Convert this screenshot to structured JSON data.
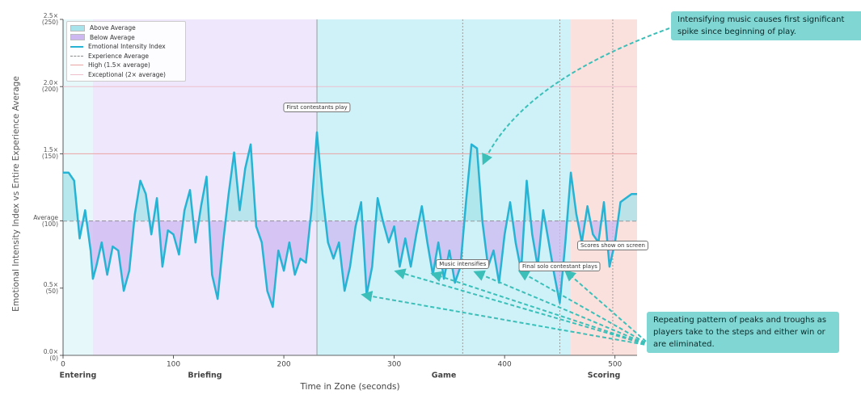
{
  "chart_data": {
    "type": "line",
    "x_label": "Time in Zone (seconds)",
    "y_label": "Emotional Intensity Index vs Entire Experience Average",
    "xlim": [
      0,
      520
    ],
    "xticks": [
      0,
      100,
      200,
      300,
      400,
      500
    ],
    "ylim": [
      0,
      2.5
    ],
    "yticks": [
      {
        "value": 0,
        "label": "0.0×\n(0)"
      },
      {
        "value": 0.5,
        "label": "0.5×\n(50)"
      },
      {
        "value": 1,
        "label": "Average\n(100)"
      },
      {
        "value": 1.5,
        "label": "1.5×\n(150)"
      },
      {
        "value": 2,
        "label": "2.0×\n(200)"
      },
      {
        "value": 2.5,
        "label": "2.5×\n(250)"
      }
    ],
    "legend": "upper left",
    "areas": [
      {
        "name": "Above Average",
        "color": "#a6e3ea"
      },
      {
        "name": "Below Average",
        "color": "#cdb8f2"
      }
    ],
    "x": [
      0,
      5,
      10,
      15,
      20,
      25,
      27,
      30,
      35,
      40,
      45,
      50,
      55,
      60,
      65,
      70,
      75,
      80,
      85,
      90,
      95,
      100,
      105,
      110,
      115,
      120,
      125,
      130,
      135,
      140,
      145,
      150,
      155,
      160,
      165,
      170,
      175,
      180,
      185,
      190,
      195,
      200,
      205,
      210,
      215,
      220,
      225,
      230,
      235,
      240,
      245,
      250,
      255,
      260,
      265,
      270,
      275,
      280,
      285,
      290,
      295,
      300,
      305,
      310,
      315,
      320,
      325,
      330,
      335,
      340,
      345,
      350,
      355,
      360,
      365,
      370,
      375,
      380,
      385,
      390,
      395,
      400,
      405,
      410,
      415,
      420,
      425,
      430,
      435,
      440,
      445,
      450,
      455,
      460,
      465,
      470,
      475,
      480,
      485,
      490,
      495,
      500,
      505,
      510,
      515,
      520
    ],
    "series": [
      {
        "name": "Emotional Intensity Index",
        "color": "#27b3d4",
        "values": [
          1.36,
          1.36,
          1.3,
          0.87,
          1.08,
          0.78,
          0.57,
          0.66,
          0.84,
          0.6,
          0.81,
          0.78,
          0.48,
          0.63,
          1.05,
          1.3,
          1.2,
          0.9,
          1.17,
          0.66,
          0.93,
          0.9,
          0.75,
          1.08,
          1.23,
          0.84,
          1.11,
          1.33,
          0.6,
          0.42,
          0.84,
          1.2,
          1.51,
          1.08,
          1.39,
          1.57,
          0.96,
          0.84,
          0.48,
          0.36,
          0.78,
          0.63,
          0.84,
          0.6,
          0.72,
          0.69,
          1.08,
          1.66,
          1.2,
          0.84,
          0.72,
          0.84,
          0.48,
          0.66,
          0.96,
          1.14,
          0.45,
          0.66,
          1.17,
          0.99,
          0.84,
          0.96,
          0.66,
          0.87,
          0.66,
          0.9,
          1.11,
          0.84,
          0.6,
          0.84,
          0.57,
          0.78,
          0.54,
          0.66,
          1.14,
          1.57,
          1.54,
          0.99,
          0.66,
          0.78,
          0.54,
          0.9,
          1.14,
          0.84,
          0.63,
          1.3,
          0.9,
          0.66,
          1.08,
          0.84,
          0.6,
          0.39,
          0.84,
          1.36,
          1.05,
          0.84,
          1.11,
          0.9,
          0.84,
          1.14,
          0.66,
          0.84,
          1.14,
          1.17,
          1.2,
          1.2
        ]
      }
    ],
    "reference_lines": [
      {
        "name": "Experience Average",
        "value": 1,
        "color": "#8a8a8a",
        "style": "dashed"
      },
      {
        "name": "High (1.5× average)",
        "value": 1.5,
        "color": "#eaa3a3",
        "style": "solid"
      },
      {
        "name": "Exceptional (2× average)",
        "value": 2,
        "color": "#eebfcd",
        "style": "solid"
      }
    ],
    "phases": [
      {
        "name": "Entering",
        "start": 0,
        "end": 27,
        "color": "#e7f8fb",
        "label_color": "#9ddbe6"
      },
      {
        "name": "Briefing",
        "start": 27,
        "end": 230,
        "color": "#efe7fb",
        "label_color": "#9a7fd3"
      },
      {
        "name": "Game",
        "start": 230,
        "end": 460,
        "color": "#cff2f8",
        "label_color": "#23b0d6"
      },
      {
        "name": "Scoring",
        "start": 460,
        "end": 520,
        "color": "#fbe1dd",
        "label_color": "#e2725d"
      }
    ],
    "events": [
      {
        "x": 230,
        "label": "First contestants play"
      },
      {
        "x": 362,
        "label": "Music intensifies"
      },
      {
        "x": 450,
        "label": "Final solo contestant plays"
      },
      {
        "x": 498,
        "label": "Scores show on screen"
      }
    ],
    "callouts": [
      "Intensifying music causes first significant spike since beginning of play.",
      "Repeating pattern of peaks and troughs as players take to the steps and either win or are eliminated."
    ]
  }
}
